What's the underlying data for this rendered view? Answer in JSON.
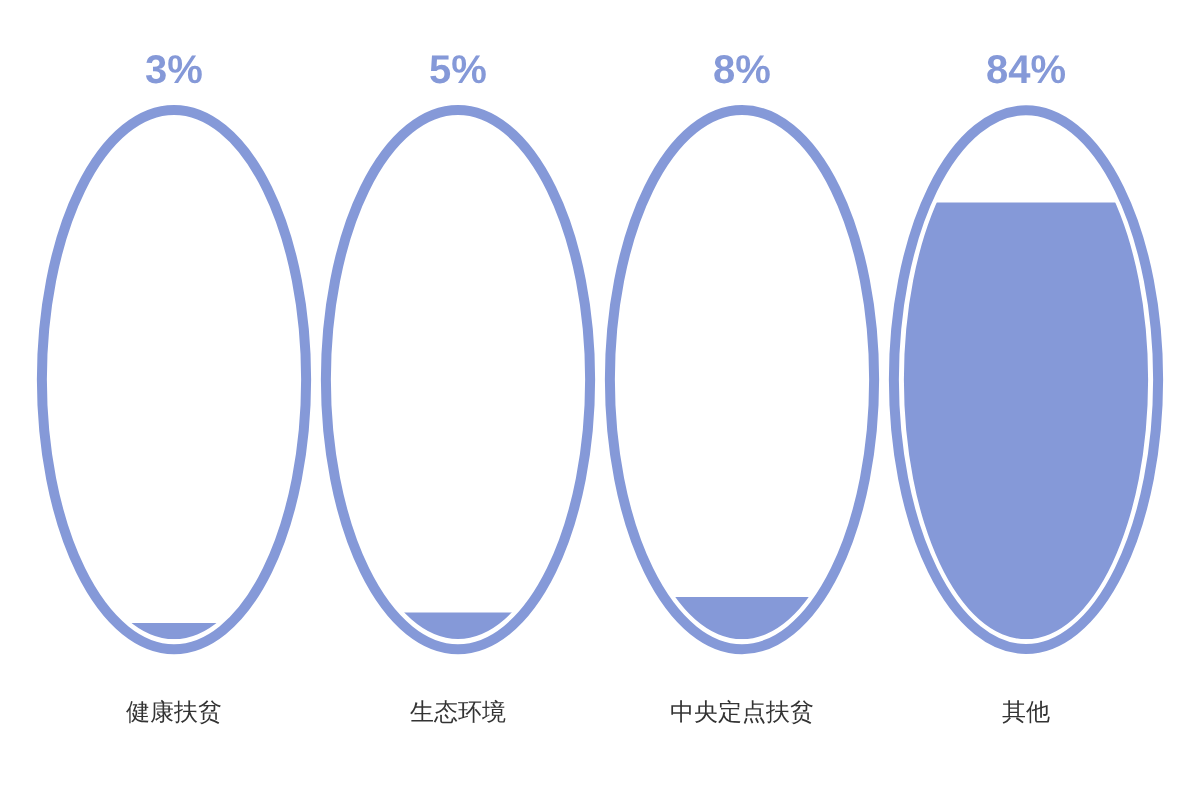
{
  "chart_data": {
    "type": "other",
    "categories": [
      "健康扶贫",
      "生态环境",
      "中央定点扶贫",
      "其他"
    ],
    "values": [
      3,
      5,
      8,
      84
    ],
    "value_labels": [
      "3%",
      "5%",
      "8%",
      "84%"
    ],
    "color": "#8599d8"
  }
}
